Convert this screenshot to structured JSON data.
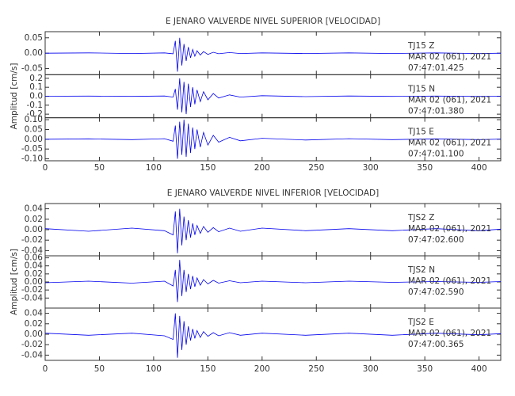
{
  "chart_data": [
    {
      "type": "line",
      "title": "E JENARO VALVERDE NIVEL SUPERIOR [VELOCIDAD]",
      "ylabel": "Amplitud [cm/s]",
      "color": "#0000ee",
      "x": [
        0,
        40,
        80,
        110,
        118,
        120,
        122,
        124,
        126,
        128,
        130,
        132,
        134,
        136,
        138,
        140,
        143,
        146,
        150,
        155,
        160,
        170,
        180,
        200,
        240,
        280,
        320,
        360,
        400,
        420
      ],
      "xlim": [
        0,
        420
      ],
      "xticks": [
        0,
        50,
        100,
        150,
        200,
        250,
        300,
        350,
        400
      ],
      "panels": [
        {
          "annotations": [
            "TJ15   Z",
            "MAR 02 (061), 2021",
            "07:47:01.425"
          ],
          "ylim": [
            -0.07,
            0.07
          ],
          "yticks": [
            -0.05,
            {
              "value": 0,
              "label": "0.00"
            },
            0.05
          ],
          "values": [
            0,
            0.001,
            -0.001,
            0.001,
            -0.002,
            0.04,
            -0.06,
            0.05,
            -0.04,
            0.03,
            -0.025,
            0.02,
            -0.015,
            0.012,
            -0.01,
            0.008,
            -0.006,
            0.005,
            -0.004,
            0.003,
            -0.002,
            0.002,
            -0.001,
            0.001,
            -0.001,
            0.001,
            -0.001,
            0.001,
            -0.001,
            0
          ]
        },
        {
          "annotations": [
            "TJ15   N",
            "MAR 02 (061), 2021",
            "07:47:01.380"
          ],
          "ylim": [
            -0.24,
            0.24
          ],
          "yticks": [
            -0.2,
            -0.1,
            {
              "value": 0,
              "label": "0.0"
            },
            0.1,
            0.2
          ],
          "values": [
            0,
            0.002,
            -0.002,
            0.003,
            -0.01,
            0.08,
            -0.15,
            0.2,
            -0.18,
            0.16,
            -0.2,
            0.14,
            -0.12,
            0.1,
            -0.09,
            0.07,
            -0.06,
            0.05,
            -0.04,
            0.03,
            -0.02,
            0.015,
            -0.01,
            0.006,
            -0.004,
            0.003,
            -0.002,
            0.002,
            -0.001,
            0
          ]
        },
        {
          "annotations": [
            "TJ15   E",
            "MAR 02 (061), 2021",
            "07:47:01.100"
          ],
          "ylim": [
            -0.11,
            0.11
          ],
          "yticks": [
            {
              "value": -0.1,
              "label": "-0.10"
            },
            -0.05,
            {
              "value": 0,
              "label": "0.00"
            },
            0.05,
            {
              "value": 0.1,
              "label": "0.10"
            }
          ],
          "values": [
            0,
            0.002,
            -0.002,
            0.003,
            -0.01,
            0.07,
            -0.1,
            0.09,
            -0.08,
            0.1,
            -0.09,
            0.08,
            -0.07,
            0.06,
            -0.05,
            0.05,
            -0.04,
            0.035,
            -0.03,
            0.02,
            -0.015,
            0.01,
            -0.008,
            0.005,
            -0.004,
            0.003,
            -0.002,
            0.002,
            -0.002,
            0.001
          ]
        }
      ]
    },
    {
      "type": "line",
      "title": "E JENARO VALVERDE NIVEL INFERIOR [VELOCIDAD]",
      "ylabel": "Amplitud [cm/s]",
      "color": "#0000ee",
      "x": [
        0,
        40,
        80,
        110,
        118,
        120,
        122,
        124,
        126,
        128,
        130,
        132,
        134,
        136,
        138,
        140,
        143,
        146,
        150,
        155,
        160,
        170,
        180,
        200,
        240,
        280,
        320,
        360,
        400,
        420
      ],
      "xlim": [
        0,
        420
      ],
      "xticks": [
        0,
        50,
        100,
        150,
        200,
        250,
        300,
        350,
        400
      ],
      "panels": [
        {
          "annotations": [
            "TJS2   Z",
            "MAR 02 (061), 2021",
            "07:47:02.600"
          ],
          "ylim": [
            -0.05,
            0.05
          ],
          "yticks": [
            -0.04,
            -0.02,
            {
              "value": 0,
              "label": "0.00"
            },
            0.02,
            0.04
          ],
          "values": [
            0.002,
            -0.003,
            0.003,
            -0.002,
            -0.01,
            0.035,
            -0.045,
            0.04,
            -0.03,
            0.025,
            -0.02,
            0.018,
            -0.015,
            0.012,
            -0.01,
            0.008,
            -0.007,
            0.006,
            -0.005,
            0.004,
            -0.004,
            0.003,
            -0.003,
            0.003,
            -0.002,
            0.002,
            -0.002,
            0.002,
            -0.002,
            0.001
          ]
        },
        {
          "annotations": [
            "TJS2   N",
            "MAR 02 (061), 2021",
            "07:47:02.590"
          ],
          "ylim": [
            -0.065,
            0.065
          ],
          "yticks": [
            -0.04,
            -0.02,
            {
              "value": 0,
              "label": "0.00"
            },
            0.02,
            0.04,
            0.06
          ],
          "values": [
            -0.002,
            0.002,
            -0.003,
            0.002,
            -0.01,
            0.03,
            -0.05,
            0.055,
            -0.035,
            0.03,
            -0.025,
            0.02,
            -0.018,
            0.015,
            -0.012,
            0.01,
            -0.008,
            0.006,
            -0.005,
            0.004,
            -0.003,
            0.003,
            -0.002,
            0.002,
            -0.002,
            0.002,
            -0.001,
            0.001,
            -0.001,
            0.001
          ]
        },
        {
          "annotations": [
            "TJS2   E",
            "MAR 02 (061), 2021",
            "07:47:00.365"
          ],
          "ylim": [
            -0.05,
            0.05
          ],
          "yticks": [
            -0.04,
            -0.02,
            {
              "value": 0,
              "label": "0.00"
            },
            0.02,
            0.04
          ],
          "values": [
            0.002,
            -0.002,
            0.002,
            -0.003,
            -0.01,
            0.04,
            -0.045,
            0.035,
            -0.03,
            0.025,
            -0.02,
            0.015,
            -0.012,
            0.01,
            -0.008,
            0.007,
            -0.006,
            0.005,
            -0.004,
            0.003,
            -0.003,
            0.003,
            -0.002,
            0.002,
            -0.002,
            0.002,
            -0.002,
            0.002,
            -0.001,
            0.001
          ]
        }
      ]
    }
  ]
}
